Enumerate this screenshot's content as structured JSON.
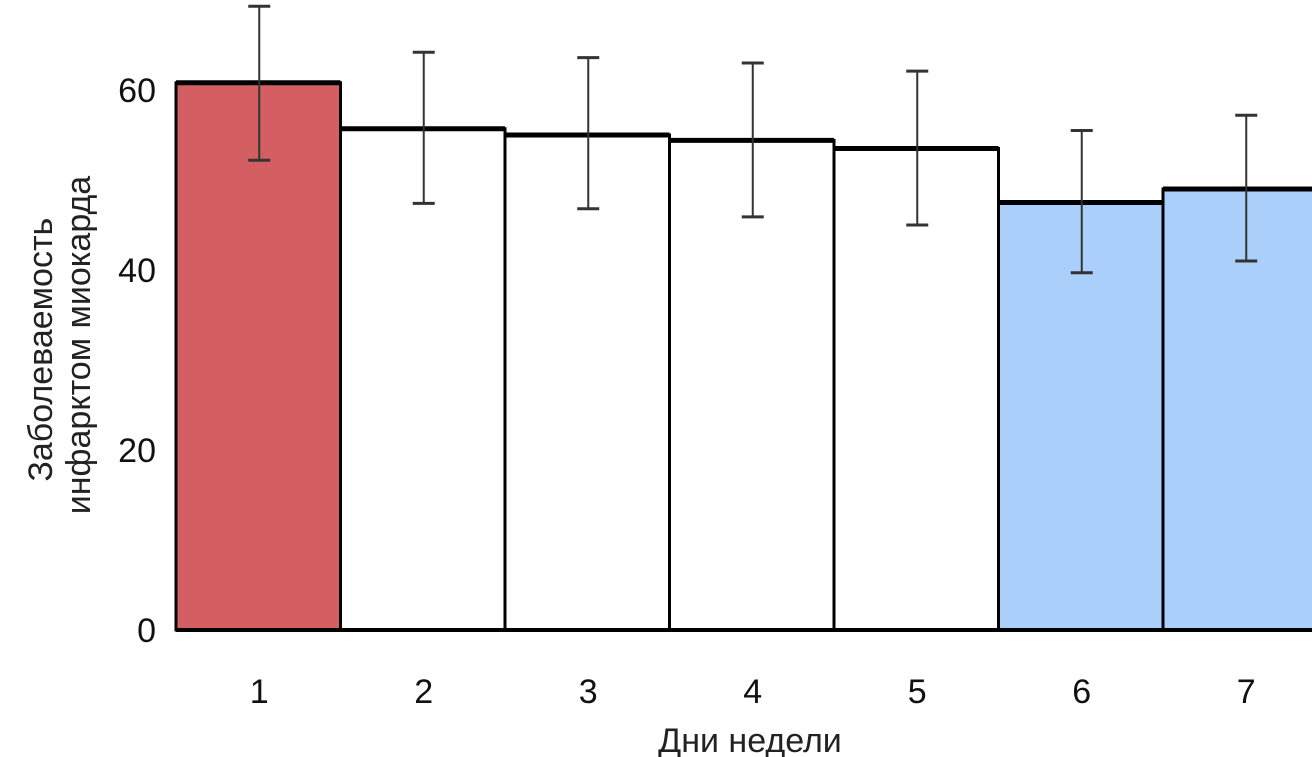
{
  "chart_data": {
    "type": "bar",
    "title": "",
    "xlabel": "Дни недели",
    "ylabel_lines": [
      "Заболеваемость",
      "инфарктом миокарда"
    ],
    "categories": [
      "1",
      "2",
      "3",
      "4",
      "5",
      "6",
      "7"
    ],
    "values": [
      60.8,
      55.7,
      55.0,
      54.4,
      53.5,
      47.5,
      49.0
    ],
    "error_low": [
      52.2,
      47.4,
      46.8,
      45.9,
      45.0,
      39.7,
      41.0
    ],
    "error_high": [
      69.3,
      64.2,
      63.6,
      63.0,
      62.1,
      55.5,
      57.2
    ],
    "bar_colors": [
      "#d45f63",
      "#ffffff",
      "#ffffff",
      "#ffffff",
      "#ffffff",
      "#abcffb",
      "#abcffb"
    ],
    "ylim": [
      0,
      70
    ],
    "yticks": [
      0,
      20,
      40,
      60
    ],
    "grid": false,
    "legend": "none"
  }
}
